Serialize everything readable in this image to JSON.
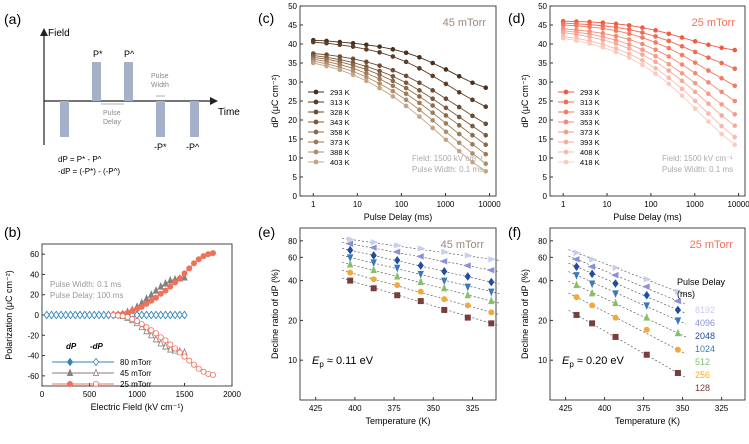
{
  "panels": {
    "a": {
      "label": "(a)",
      "axis_y": "Field",
      "axis_x": "Time",
      "pulses": [
        "P*",
        "P^",
        "-P*",
        "-P^"
      ],
      "pulse_width": [
        "Pulse",
        "Width"
      ],
      "pulse_delay": [
        "Pulse",
        "Delay"
      ],
      "eq1": "dP = P* - P^",
      "eq2": "-dP = (-P*) - (-P^)"
    },
    "b": {
      "label": "(b)"
    },
    "c": {
      "label": "(c)"
    },
    "d": {
      "label": "(d)"
    },
    "e": {
      "label": "(e)"
    },
    "f": {
      "label": "(f)"
    }
  },
  "chart_data": [
    {
      "id": "b",
      "type": "line",
      "xlabel": "Electric Field (kV cm⁻¹)",
      "ylabel": "Polarization (μC cm⁻²)",
      "xlim": [
        0,
        2000
      ],
      "ylim": [
        -70,
        70
      ],
      "xticks": [
        0,
        500,
        1000,
        1500,
        2000
      ],
      "yticks": [
        -60,
        -40,
        -20,
        0,
        20,
        40,
        60
      ],
      "annotations": [
        "Pulse Width: 0.1 ms",
        "Pulse Delay: 100 ms"
      ],
      "legend_header": [
        "dP",
        "-dP"
      ],
      "series": [
        {
          "name": "80 mTorr",
          "color": "#2e86b8",
          "marker": "diamond",
          "x": [
            50,
            100,
            150,
            200,
            250,
            300,
            350,
            400,
            450,
            500,
            550,
            600,
            650,
            700,
            750,
            800,
            850,
            900,
            950,
            1000,
            1050,
            1100,
            1150,
            1200,
            1250,
            1300,
            1350,
            1400,
            1450,
            1500
          ],
          "dP": [
            0,
            0,
            0,
            0,
            0,
            0,
            0,
            0,
            0,
            0,
            0,
            0,
            0,
            0,
            0,
            0,
            0,
            0,
            0,
            0,
            0,
            0,
            0,
            0,
            0,
            0,
            0,
            0,
            0,
            0
          ],
          "ndP": [
            0,
            0,
            0,
            0,
            0,
            0,
            0,
            0,
            0,
            0,
            0,
            0,
            0,
            0,
            0,
            0,
            0,
            0,
            0,
            0,
            0,
            0,
            0,
            0,
            0,
            0,
            0,
            0,
            0,
            0
          ]
        },
        {
          "name": "45 mTorr",
          "color": "#8a7f7a",
          "marker": "triangle",
          "x": [
            800,
            850,
            900,
            950,
            1000,
            1050,
            1100,
            1150,
            1200,
            1250,
            1300,
            1350,
            1400,
            1450,
            1500
          ],
          "dP": [
            0,
            1,
            3,
            5,
            8,
            12,
            16,
            20,
            24,
            28,
            31,
            34,
            35,
            36,
            37
          ],
          "ndP": [
            0,
            -1,
            -3,
            -5,
            -8,
            -12,
            -16,
            -20,
            -24,
            -28,
            -31,
            -34,
            -35,
            -36,
            -37
          ]
        },
        {
          "name": "25 mTorr",
          "color": "#f0705a",
          "marker": "circle",
          "x": [
            750,
            800,
            850,
            900,
            950,
            1000,
            1050,
            1100,
            1150,
            1200,
            1250,
            1300,
            1350,
            1400,
            1450,
            1500,
            1550,
            1600,
            1650,
            1700,
            1750,
            1800
          ],
          "dP": [
            0,
            0.5,
            1,
            2,
            4,
            6,
            8,
            11,
            14,
            17,
            21,
            24,
            28,
            32,
            36,
            41,
            46,
            51,
            55,
            58,
            60,
            61
          ],
          "ndP": [
            0,
            -0.5,
            -1,
            -2,
            -4,
            -6,
            -9,
            -12,
            -15,
            -18,
            -22,
            -25,
            -29,
            -33,
            -37,
            -41,
            -45,
            -49,
            -53,
            -56,
            -58,
            -59
          ]
        }
      ]
    },
    {
      "id": "c",
      "type": "line",
      "title": "45 mTorr",
      "xlabel": "Pulse Delay (ms)",
      "ylabel": "dP (μC cm⁻²)",
      "xscale": "log",
      "xlim": [
        0.5,
        14000
      ],
      "ylim": [
        0,
        50
      ],
      "xticks": [
        1,
        10,
        100,
        1000,
        10000
      ],
      "yticks": [
        0,
        5,
        10,
        15,
        20,
        25,
        30,
        35,
        40,
        45,
        50
      ],
      "annotations": [
        "Field: 1500 kV cm⁻¹",
        "Pulse Width: 0.1 ms"
      ],
      "x": [
        1,
        2,
        4,
        8,
        16,
        32,
        64,
        128,
        256,
        512,
        1024,
        2048,
        4096,
        8192
      ],
      "series": [
        {
          "name": "293 K",
          "color": "#4a2e1c",
          "values": [
            41,
            40.8,
            40.5,
            40.2,
            39.8,
            39.3,
            38.6,
            37.7,
            36.5,
            35,
            33.3,
            31.5,
            29.8,
            28.5
          ]
        },
        {
          "name": "313 K",
          "color": "#5c3c25",
          "values": [
            40.5,
            40.2,
            39.8,
            39.3,
            38.6,
            37.8,
            36.7,
            35.3,
            33.6,
            31.6,
            29.5,
            27.3,
            25.3,
            23.5
          ]
        },
        {
          "name": "328 K",
          "color": "#6d4a30",
          "values": [
            37.5,
            37.2,
            36.7,
            36.1,
            35.3,
            34.3,
            33.1,
            31.6,
            29.8,
            27.8,
            25.6,
            23.4,
            21.1,
            19
          ]
        },
        {
          "name": "343 K",
          "color": "#7d593b",
          "values": [
            37,
            36.5,
            35.9,
            35.1,
            34.1,
            32.9,
            31.5,
            29.8,
            27.8,
            25.6,
            23.2,
            20.8,
            18.4,
            16
          ]
        },
        {
          "name": "358 K",
          "color": "#8e6948",
          "values": [
            36.5,
            36,
            35.3,
            34.4,
            33.3,
            31.9,
            30.3,
            28.4,
            26.2,
            23.8,
            21.2,
            18.6,
            16,
            13.5
          ]
        },
        {
          "name": "373 K",
          "color": "#9f7a57",
          "values": [
            36,
            35.4,
            34.6,
            33.6,
            32.3,
            30.8,
            29,
            26.9,
            24.5,
            21.9,
            19.1,
            16.3,
            13.6,
            11
          ]
        },
        {
          "name": "388 K",
          "color": "#b08c69",
          "values": [
            35.5,
            34.8,
            33.9,
            32.8,
            31.3,
            29.6,
            27.6,
            25.3,
            22.7,
            19.9,
            16.9,
            14,
            11.2,
            8.5
          ]
        },
        {
          "name": "403 K",
          "color": "#c4a484",
          "values": [
            35,
            34.2,
            33.2,
            31.9,
            30.3,
            28.4,
            26.2,
            23.7,
            20.9,
            17.9,
            14.8,
            11.8,
            8.9,
            6.5
          ]
        }
      ]
    },
    {
      "id": "d",
      "type": "line",
      "title": "25 mTorr",
      "xlabel": "Pulse Delay (ms)",
      "ylabel": "dP (μC cm⁻²)",
      "xscale": "log",
      "xlim": [
        0.5,
        14000
      ],
      "ylim": [
        0,
        50
      ],
      "xticks": [
        1,
        10,
        100,
        1000,
        10000
      ],
      "yticks": [
        0,
        5,
        10,
        15,
        20,
        25,
        30,
        35,
        40,
        45,
        50
      ],
      "annotations": [
        "Field: 1500 kV cm⁻¹",
        "Pulse Width: 0.1 ms"
      ],
      "x": [
        1,
        2,
        4,
        8,
        16,
        32,
        64,
        128,
        256,
        512,
        1024,
        2048,
        4096,
        8192
      ],
      "series": [
        {
          "name": "293 K",
          "color": "#f05a40",
          "values": [
            46,
            45.9,
            45.8,
            45.6,
            45.3,
            44.9,
            44.3,
            43.6,
            42.7,
            41.7,
            40.7,
            39.8,
            39,
            38.4
          ]
        },
        {
          "name": "313 K",
          "color": "#f26a50",
          "values": [
            45.5,
            45.3,
            45.1,
            44.8,
            44.4,
            43.8,
            43,
            42,
            40.8,
            39.4,
            37.9,
            36.4,
            35,
            33.5
          ]
        },
        {
          "name": "333 K",
          "color": "#f47a62",
          "values": [
            45,
            44.8,
            44.5,
            44.1,
            43.5,
            42.7,
            41.7,
            40.4,
            38.9,
            37.1,
            35.1,
            33,
            31,
            29
          ]
        },
        {
          "name": "353 K",
          "color": "#f58a74",
          "values": [
            44,
            43.7,
            43.3,
            42.8,
            42.1,
            41.2,
            40,
            38.5,
            36.7,
            34.6,
            32.3,
            29.9,
            27.4,
            25
          ]
        },
        {
          "name": "373 K",
          "color": "#f79a87",
          "values": [
            43.5,
            43.1,
            42.6,
            41.9,
            41,
            39.9,
            38.5,
            36.8,
            34.7,
            32.3,
            29.7,
            26.9,
            24.1,
            21.5
          ]
        },
        {
          "name": "393 K",
          "color": "#f8aa9a",
          "values": [
            43,
            42.5,
            41.9,
            41.1,
            40.1,
            38.8,
            37.2,
            35.3,
            33,
            30.3,
            27.4,
            24.3,
            21.2,
            18.5
          ]
        },
        {
          "name": "408 K",
          "color": "#fab9ab",
          "values": [
            42,
            41.5,
            40.8,
            39.9,
            38.8,
            37.4,
            35.7,
            33.6,
            31.1,
            28.2,
            25,
            21.7,
            18.4,
            15.5
          ]
        },
        {
          "name": "418 K",
          "color": "#fcc9bd",
          "values": [
            41.5,
            40.9,
            40.1,
            39.1,
            37.9,
            36.4,
            34.5,
            32.2,
            29.5,
            26.4,
            23,
            19.6,
            16.3,
            13.5
          ]
        }
      ]
    },
    {
      "id": "e",
      "type": "scatter",
      "title": "45 mTorr",
      "xlabel": "Temperature (K)",
      "ylabel": "Decline ratio of dP (%)",
      "yscale": "log",
      "ylim": [
        5,
        100
      ],
      "xlim": [
        435,
        310
      ],
      "xticks": [
        425,
        400,
        375,
        350,
        325
      ],
      "yticks": [
        10,
        20,
        40,
        60,
        80
      ],
      "ep_label": "E",
      "ep_value": "≈ 0.11 eV",
      "x": [
        403,
        388,
        373,
        358,
        343,
        328,
        313
      ],
      "series": [
        {
          "name": "8192",
          "color": "#c9cdee",
          "marker": "tri-right",
          "values": [
            82,
            78,
            74,
            70,
            66,
            62,
            58
          ]
        },
        {
          "name": "4096",
          "color": "#8f8fd8",
          "marker": "tri-left",
          "values": [
            76,
            71,
            66,
            61,
            56,
            52,
            48
          ]
        },
        {
          "name": "2048",
          "color": "#1f4ea0",
          "marker": "diamond",
          "values": [
            68,
            62,
            57,
            52,
            47,
            43,
            39
          ]
        },
        {
          "name": "1024",
          "color": "#3b78b8",
          "marker": "tri-down",
          "values": [
            60,
            55,
            50,
            45,
            40,
            36,
            33
          ]
        },
        {
          "name": "512",
          "color": "#86c06a",
          "marker": "tri-up",
          "values": [
            53,
            48,
            43,
            39,
            35,
            31,
            28
          ]
        },
        {
          "name": "256",
          "color": "#f2a93b",
          "marker": "circle",
          "values": [
            46,
            41,
            37,
            33,
            29,
            26,
            23
          ]
        },
        {
          "name": "128",
          "color": "#7a3d3d",
          "marker": "square",
          "values": [
            40,
            35,
            31,
            28,
            24,
            21,
            19
          ]
        }
      ]
    },
    {
      "id": "f",
      "type": "scatter",
      "title": "25 mTorr",
      "xlabel": "Temperature (K)",
      "ylabel": "Decline ratio of dP (%)",
      "yscale": "log",
      "ylim": [
        5,
        100
      ],
      "xlim": [
        435,
        310
      ],
      "xticks": [
        425,
        400,
        375,
        350,
        325
      ],
      "yticks": [
        10,
        20,
        40,
        60,
        80
      ],
      "ep_label": "E",
      "ep_value": "≈ 0.20 eV",
      "legend_title": [
        "Pulse Delay",
        "(ms)"
      ],
      "x": [
        418,
        408,
        393,
        373,
        353
      ],
      "series": [
        {
          "name": "8192",
          "color": "#c9cdee",
          "marker": "tri-right",
          "values": [
            65,
            58,
            50,
            41,
            33
          ]
        },
        {
          "name": "4096",
          "color": "#8f8fd8",
          "marker": "tri-left",
          "values": [
            58,
            51,
            44,
            36,
            28
          ]
        },
        {
          "name": "2048",
          "color": "#1f4ea0",
          "marker": "diamond",
          "values": [
            51,
            45,
            38,
            31,
            24
          ]
        },
        {
          "name": "1024",
          "color": "#3b78b8",
          "marker": "tri-down",
          "values": [
            44,
            38,
            32,
            26,
            20
          ]
        },
        {
          "name": "512",
          "color": "#86c06a",
          "marker": "tri-up",
          "values": [
            37,
            32,
            27,
            21,
            16
          ]
        },
        {
          "name": "256",
          "color": "#f2a93b",
          "marker": "circle",
          "values": [
            30,
            26,
            21,
            17,
            12
          ]
        },
        {
          "name": "128",
          "color": "#7a3d3d",
          "marker": "square",
          "values": [
            22,
            19,
            15,
            11,
            8
          ]
        }
      ]
    }
  ]
}
